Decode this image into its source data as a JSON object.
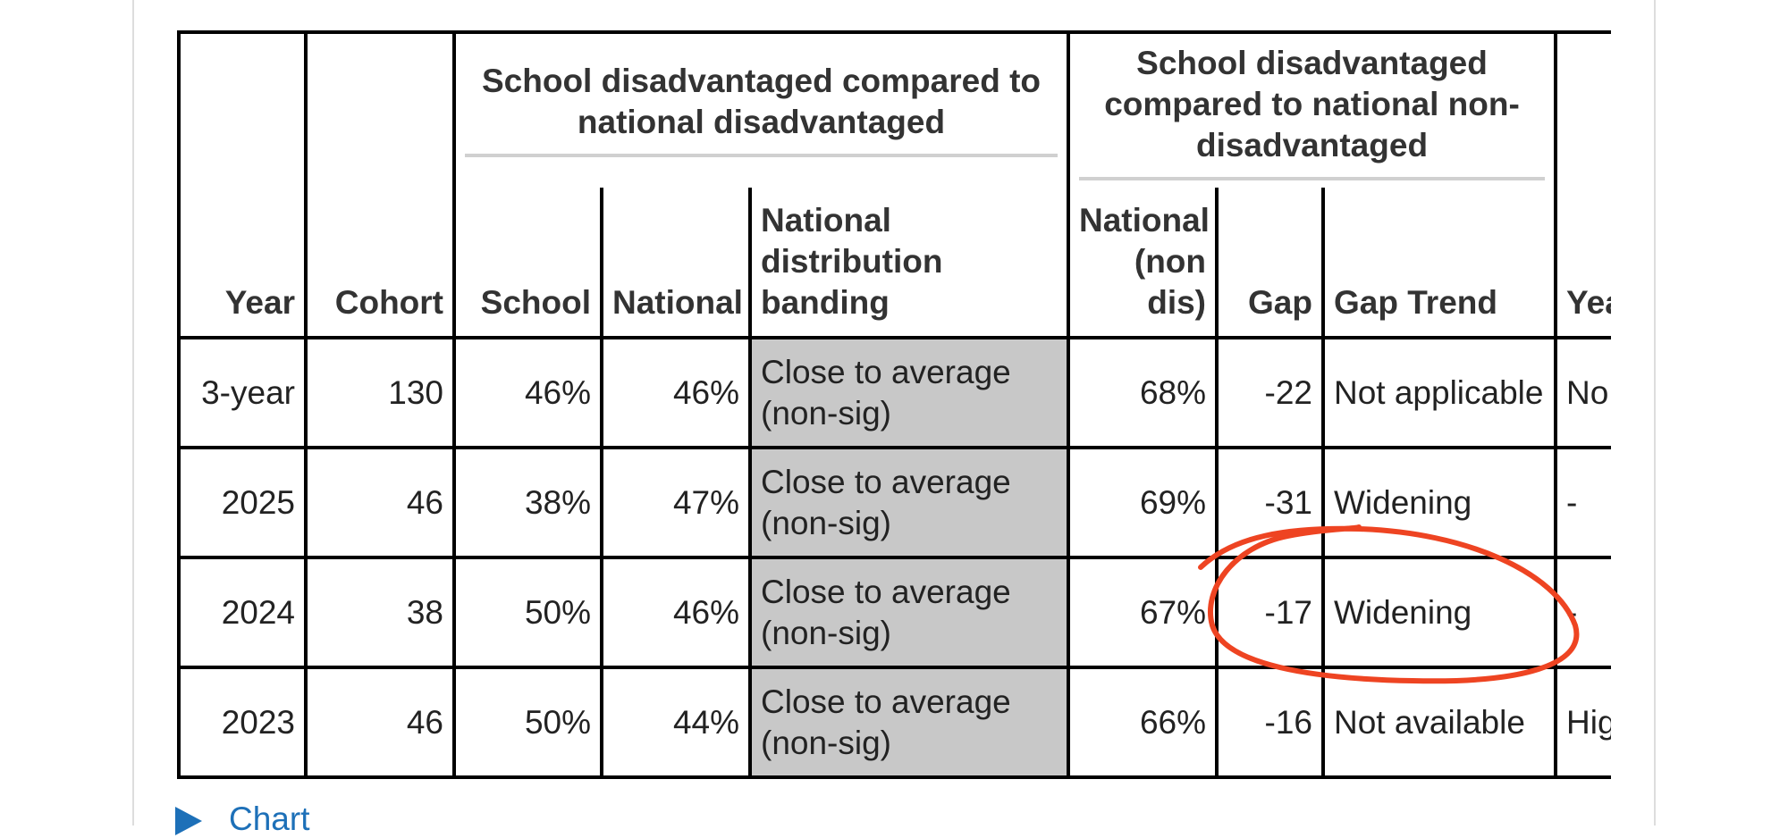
{
  "table": {
    "group_headers": [
      "School disadvantaged compared to national disadvantaged",
      "School disadvantaged compared to national non-disadvantaged"
    ],
    "columns": [
      "Year",
      "Cohort",
      "School",
      "National",
      "National distribution banding",
      "National (non dis)",
      "Gap",
      "Gap Trend",
      "Year com"
    ],
    "rows": [
      [
        "3-year",
        "130",
        "46%",
        "46%",
        "Close to average (non-sig)",
        "68%",
        "-22",
        "Not applicable",
        "No"
      ],
      [
        "2025",
        "46",
        "38%",
        "47%",
        "Close to average (non-sig)",
        "69%",
        "-31",
        "Widening",
        "-"
      ],
      [
        "2024",
        "38",
        "50%",
        "46%",
        "Close to average (non-sig)",
        "67%",
        "-17",
        "Widening",
        "-"
      ],
      [
        "2023",
        "46",
        "50%",
        "44%",
        "Close to average (non-sig)",
        "66%",
        "-16",
        "Not available",
        "Hig"
      ]
    ]
  },
  "link": "Chart"
}
